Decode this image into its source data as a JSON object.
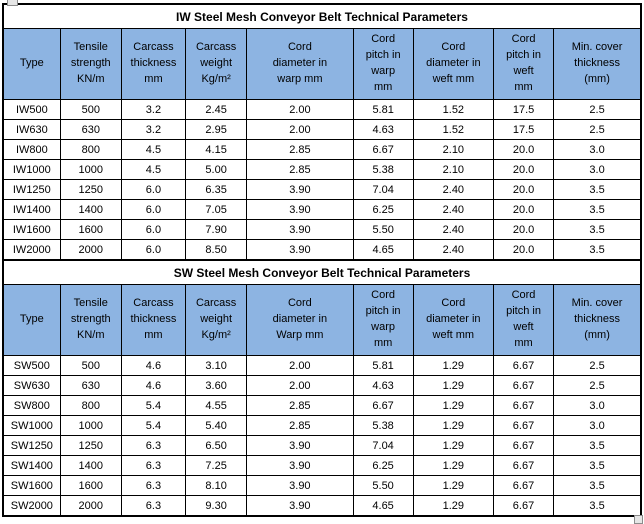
{
  "colors": {
    "header_fill": "#8DB4E2",
    "grid": "#000000",
    "background": "#FFFFFF",
    "text": "#000000"
  },
  "tables": [
    {
      "title": "IW Steel Mesh Conveyor Belt Technical Parameters",
      "columns": [
        "Type",
        "Tensile\nstrength\nKN/m",
        "Carcass\nthickness\nmm",
        "Carcass\nweight\nKg/m²",
        "Cord\ndiameter in\nwarp mm",
        "Cord\npitch in\nwarp\nmm",
        "Cord\ndiameter in\nweft mm",
        "Cord\npitch in\nweft\nmm",
        "Min. cover\nthickness\n(mm)"
      ],
      "rows": [
        [
          "IW500",
          "500",
          "3.2",
          "2.45",
          "2.00",
          "5.81",
          "1.52",
          "17.5",
          "2.5"
        ],
        [
          "IW630",
          "630",
          "3.2",
          "2.95",
          "2.00",
          "4.63",
          "1.52",
          "17.5",
          "2.5"
        ],
        [
          "IW800",
          "800",
          "4.5",
          "4.15",
          "2.85",
          "6.67",
          "2.10",
          "20.0",
          "3.0"
        ],
        [
          "IW1000",
          "1000",
          "4.5",
          "5.00",
          "2.85",
          "5.38",
          "2.10",
          "20.0",
          "3.0"
        ],
        [
          "IW1250",
          "1250",
          "6.0",
          "6.35",
          "3.90",
          "7.04",
          "2.40",
          "20.0",
          "3.5"
        ],
        [
          "IW1400",
          "1400",
          "6.0",
          "7.05",
          "3.90",
          "6.25",
          "2.40",
          "20.0",
          "3.5"
        ],
        [
          "IW1600",
          "1600",
          "6.0",
          "7.90",
          "3.90",
          "5.50",
          "2.40",
          "20.0",
          "3.5"
        ],
        [
          "IW2000",
          "2000",
          "6.0",
          "8.50",
          "3.90",
          "4.65",
          "2.40",
          "20.0",
          "3.5"
        ]
      ]
    },
    {
      "title": "SW Steel Mesh Conveyor Belt Technical Parameters",
      "columns": [
        "Type",
        "Tensile\nstrength\nKN/m",
        "Carcass\nthickness\nmm",
        "Carcass\nweight\nKg/m²",
        "Cord\ndiameter in\nWarp mm",
        "Cord\npitch in\nwarp\nmm",
        "Cord\ndiameter in\nweft mm",
        "Cord\npitch in\nweft\nmm",
        "Min. cover\nthickness\n(mm)"
      ],
      "rows": [
        [
          "SW500",
          "500",
          "4.6",
          "3.10",
          "2.00",
          "5.81",
          "1.29",
          "6.67",
          "2.5"
        ],
        [
          "SW630",
          "630",
          "4.6",
          "3.60",
          "2.00",
          "4.63",
          "1.29",
          "6.67",
          "2.5"
        ],
        [
          "SW800",
          "800",
          "5.4",
          "4.55",
          "2.85",
          "6.67",
          "1.29",
          "6.67",
          "3.0"
        ],
        [
          "SW1000",
          "1000",
          "5.4",
          "5.40",
          "2.85",
          "5.38",
          "1.29",
          "6.67",
          "3.0"
        ],
        [
          "SW1250",
          "1250",
          "6.3",
          "6.50",
          "3.90",
          "7.04",
          "1.29",
          "6.67",
          "3.5"
        ],
        [
          "SW1400",
          "1400",
          "6.3",
          "7.25",
          "3.90",
          "6.25",
          "1.29",
          "6.67",
          "3.5"
        ],
        [
          "SW1600",
          "1600",
          "6.3",
          "8.10",
          "3.90",
          "5.50",
          "1.29",
          "6.67",
          "3.5"
        ],
        [
          "SW2000",
          "2000",
          "6.3",
          "9.30",
          "3.90",
          "4.65",
          "1.29",
          "6.67",
          "3.5"
        ]
      ]
    }
  ]
}
